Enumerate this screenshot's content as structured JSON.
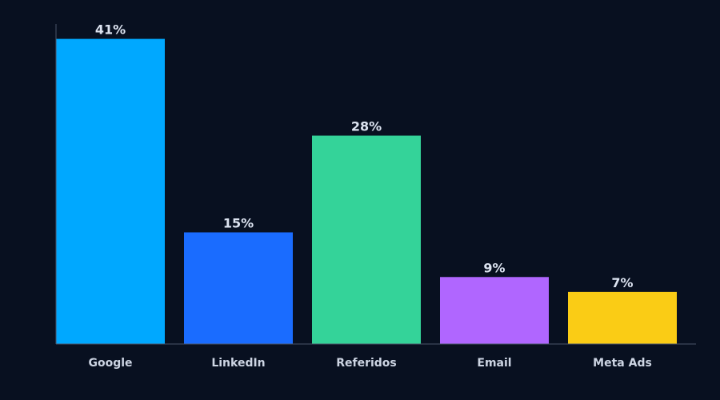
{
  "chart_data": {
    "type": "bar",
    "title": "",
    "xlabel": "",
    "ylabel": "",
    "ylim": [
      0,
      43
    ],
    "grid": false,
    "legend": "none",
    "categories": [
      "Google",
      "LinkedIn",
      "Referidos",
      "Email",
      "Meta Ads"
    ],
    "values": [
      41,
      15,
      28,
      9,
      7
    ],
    "value_labels": [
      "41%",
      "15%",
      "28%",
      "9%",
      "7%"
    ],
    "colors": [
      "#00a8ff",
      "#1a6cff",
      "#34d399",
      "#b066ff",
      "#facc15"
    ],
    "background": "#081020"
  }
}
